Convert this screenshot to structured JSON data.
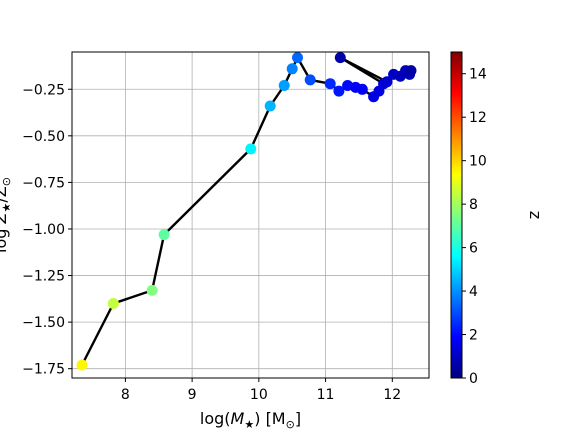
{
  "chart_data": {
    "type": "scatter",
    "title": "",
    "xlabel": "log(M★) [M⊙]",
    "ylabel": "log Z★/Z⊙",
    "xlim": [
      7.2,
      12.55
    ],
    "ylim": [
      -1.8,
      -0.05
    ],
    "x_ticks": [
      8,
      9,
      10,
      11,
      12
    ],
    "y_ticks": [
      -1.75,
      -1.5,
      -1.25,
      -1.0,
      -0.75,
      -0.5,
      -0.25
    ],
    "y_tick_labels": [
      "−1.75",
      "−1.50",
      "−1.25",
      "−1.00",
      "−0.75",
      "−0.50",
      "−0.25"
    ],
    "grid": true,
    "colorbar": {
      "label": "z",
      "range": [
        0,
        15
      ],
      "ticks": [
        0,
        2,
        4,
        6,
        8,
        10,
        12,
        14
      ],
      "colormap": "jet"
    },
    "series": [
      {
        "connected": true,
        "line_color": "#000000",
        "points": [
          {
            "x": 7.35,
            "y": -1.73,
            "z": 9.5
          },
          {
            "x": 7.82,
            "y": -1.4,
            "z": 8.5
          },
          {
            "x": 8.4,
            "y": -1.33,
            "z": 7.5
          },
          {
            "x": 8.58,
            "y": -1.03,
            "z": 7.0
          },
          {
            "x": 9.88,
            "y": -0.57,
            "z": 5.5
          },
          {
            "x": 10.17,
            "y": -0.34,
            "z": 4.5
          },
          {
            "x": 10.38,
            "y": -0.23,
            "z": 4.2
          },
          {
            "x": 10.5,
            "y": -0.14,
            "z": 3.8
          },
          {
            "x": 10.58,
            "y": -0.08,
            "z": 3.4
          },
          {
            "x": 10.77,
            "y": -0.2,
            "z": 3.0
          },
          {
            "x": 11.07,
            "y": -0.22,
            "z": 2.5
          },
          {
            "x": 11.2,
            "y": -0.26,
            "z": 2.2
          },
          {
            "x": 11.33,
            "y": -0.23,
            "z": 2.0
          },
          {
            "x": 11.45,
            "y": -0.24,
            "z": 1.8
          },
          {
            "x": 11.55,
            "y": -0.25,
            "z": 1.7
          },
          {
            "x": 11.72,
            "y": -0.29,
            "z": 1.5
          },
          {
            "x": 11.8,
            "y": -0.26,
            "z": 1.4
          },
          {
            "x": 11.87,
            "y": -0.22,
            "z": 1.3
          },
          {
            "x": 11.22,
            "y": -0.08,
            "z": 0.6
          },
          {
            "x": 11.92,
            "y": -0.21,
            "z": 1.2
          },
          {
            "x": 12.02,
            "y": -0.17,
            "z": 1.0
          },
          {
            "x": 12.12,
            "y": -0.18,
            "z": 0.9
          },
          {
            "x": 12.2,
            "y": -0.15,
            "z": 0.8
          },
          {
            "x": 12.26,
            "y": -0.17,
            "z": 0.7
          },
          {
            "x": 12.28,
            "y": -0.15,
            "z": 0.6
          }
        ]
      }
    ]
  }
}
